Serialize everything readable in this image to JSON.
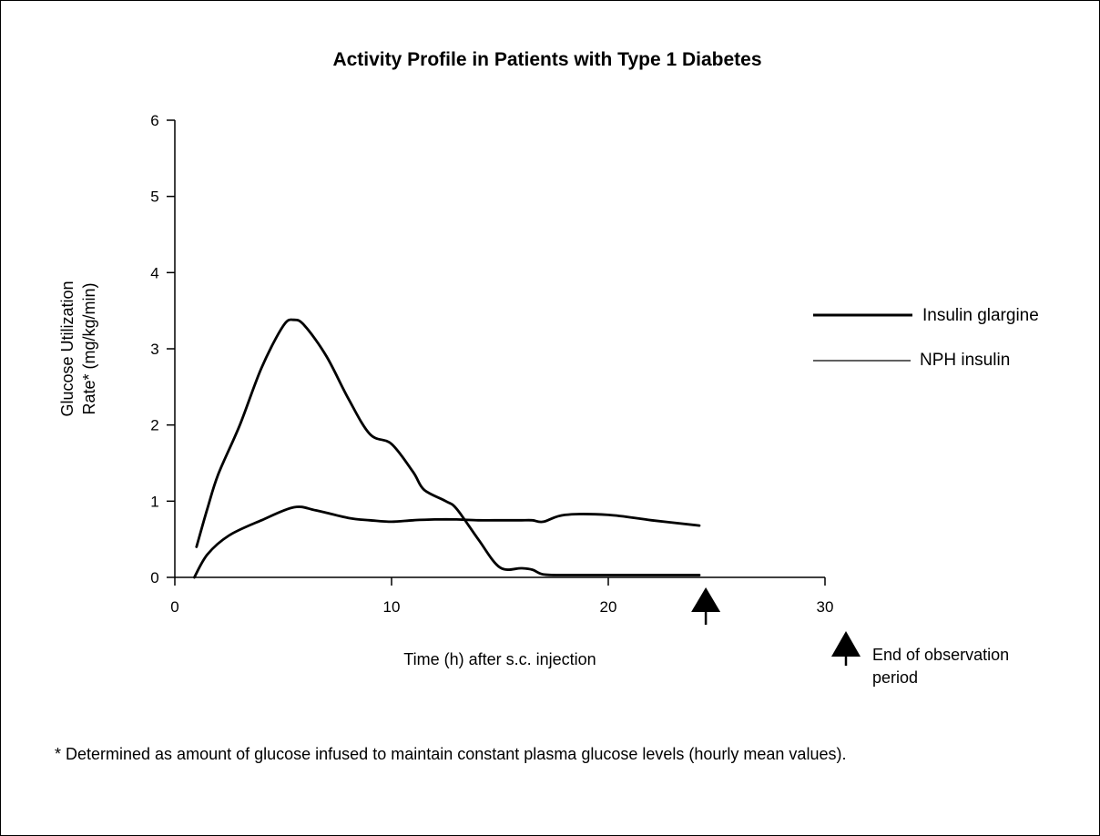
{
  "chart_data": {
    "type": "line",
    "title": "Activity Profile in Patients with Type 1 Diabetes",
    "xlabel": "Time (h) after s.c. injection",
    "ylabel_line1": "Glucose Utilization",
    "ylabel_line2": "Rate* (mg/kg/min)",
    "xlim": [
      0,
      30
    ],
    "ylim": [
      0,
      6
    ],
    "x_ticks": [
      0,
      10,
      20,
      30
    ],
    "y_ticks": [
      0,
      1,
      2,
      3,
      4,
      5,
      6
    ],
    "grid": false,
    "legend_position": "right",
    "series": [
      {
        "name": "Insulin glargine",
        "style": "thick",
        "x": [
          0.9,
          1.5,
          2.5,
          4,
          5.5,
          6.5,
          8,
          9,
          10,
          11,
          12,
          13,
          14,
          15,
          15.5,
          16,
          16.5,
          17,
          18,
          20,
          22,
          24.2
        ],
        "y": [
          0.0,
          0.3,
          0.55,
          0.75,
          0.92,
          0.88,
          0.78,
          0.75,
          0.73,
          0.75,
          0.76,
          0.76,
          0.75,
          0.75,
          0.75,
          0.75,
          0.75,
          0.73,
          0.82,
          0.82,
          0.75,
          0.68
        ]
      },
      {
        "name": "NPH insulin",
        "style": "thin",
        "x": [
          1.0,
          1.5,
          2.0,
          3.0,
          4.0,
          5.0,
          5.5,
          6.0,
          7.0,
          8.0,
          9.0,
          10.0,
          11.0,
          11.5,
          12.5,
          13.0,
          14.0,
          15.0,
          16.0,
          16.5,
          17.0,
          18.0,
          20.0,
          22.0,
          24.2
        ],
        "y": [
          0.4,
          0.9,
          1.35,
          2.0,
          2.75,
          3.3,
          3.38,
          3.3,
          2.9,
          2.35,
          1.88,
          1.75,
          1.38,
          1.15,
          1.0,
          0.9,
          0.5,
          0.13,
          0.12,
          0.1,
          0.04,
          0.03,
          0.03,
          0.03,
          0.03
        ]
      }
    ],
    "annotation": {
      "label_line1": "End of observation",
      "label_line2": "period",
      "x": 24.5
    },
    "footnote": "* Determined as amount of glucose infused to maintain constant plasma glucose levels (hourly mean values)."
  }
}
